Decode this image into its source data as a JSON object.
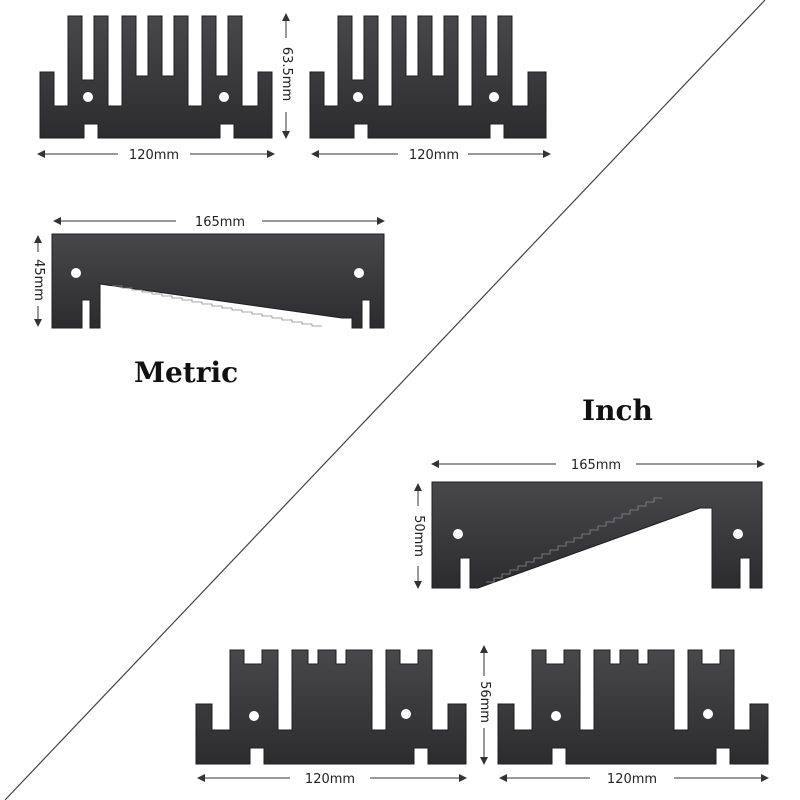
{
  "headings": {
    "metric": "Metric",
    "inch": "Inch"
  },
  "colors": {
    "plate": "#3a3a3c",
    "plate_edge": "#1f1f21",
    "line": "#333333",
    "background": "#ffffff"
  },
  "metric": {
    "small_plates": {
      "width_label": "120mm",
      "height_label": "63.5mm"
    },
    "long_plate": {
      "width_label": "165mm",
      "height_label": "45mm"
    }
  },
  "inch": {
    "long_plate": {
      "width_label": "165mm",
      "height_label": "50mm"
    },
    "small_plates": {
      "width_label": "120mm",
      "height_label": "56mm"
    }
  }
}
